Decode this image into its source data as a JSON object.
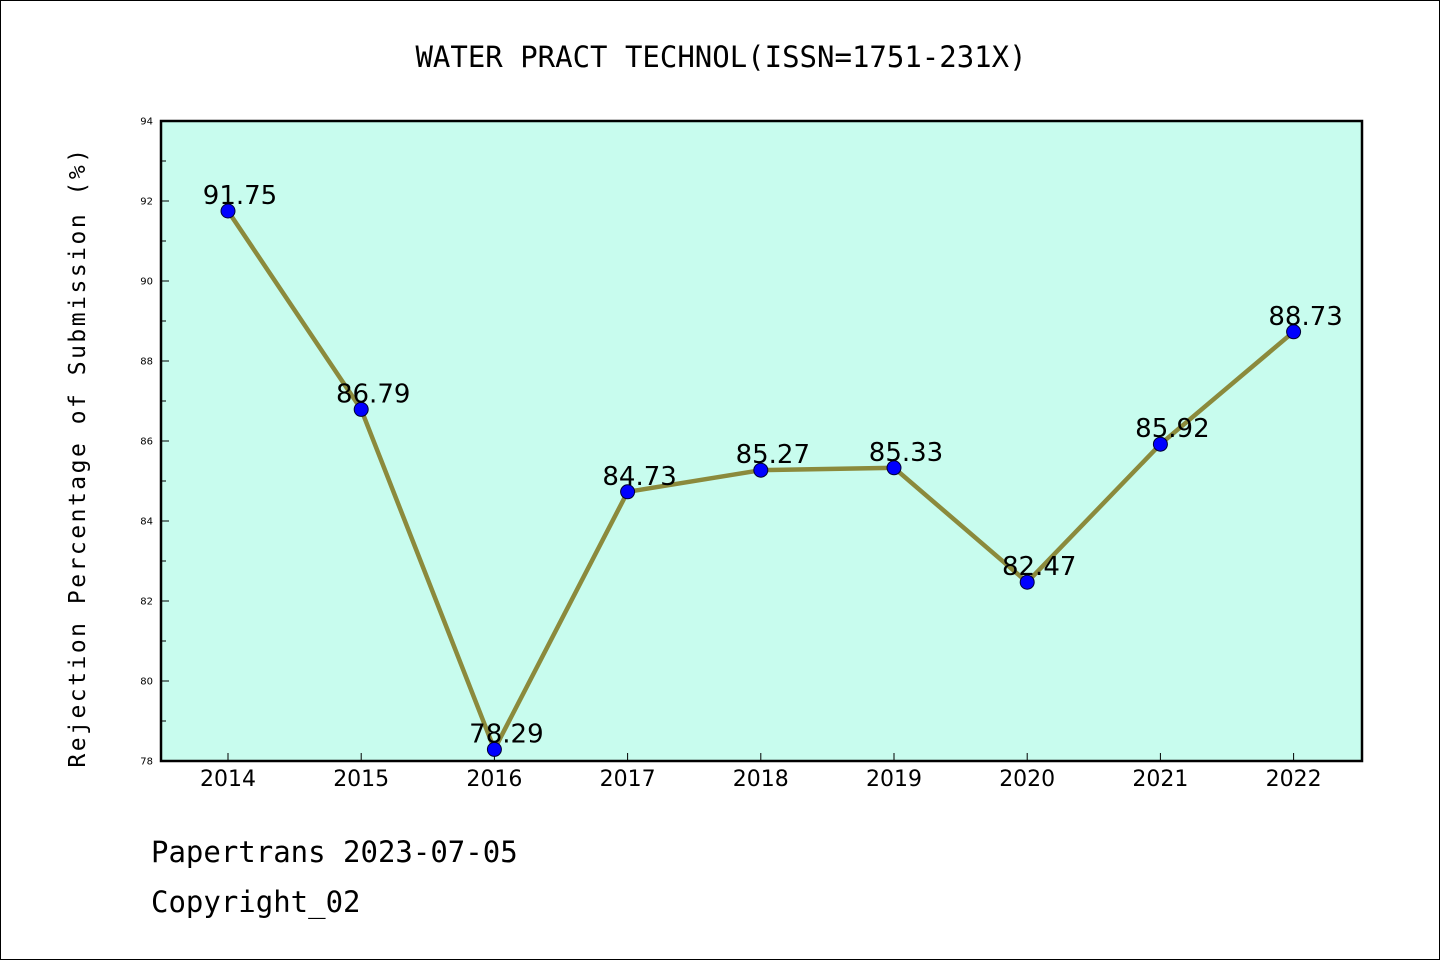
{
  "title": "WATER PRACT TECHNOL(ISSN=1751-231X)",
  "footer": {
    "line1": "Papertrans 2023-07-05",
    "line2": "Copyright_02"
  },
  "chart_data": {
    "type": "line",
    "title": "WATER PRACT TECHNOL(ISSN=1751-231X)",
    "xlabel": "",
    "ylabel": "Rejection Percentage of Submission (%)",
    "categories": [
      "2014",
      "2015",
      "2016",
      "2017",
      "2018",
      "2019",
      "2020",
      "2021",
      "2022"
    ],
    "values": [
      91.75,
      86.79,
      78.29,
      84.73,
      85.27,
      85.33,
      82.47,
      85.92,
      88.73
    ],
    "data_labels": [
      "91.75",
      "86.79",
      "78.29",
      "84.73",
      "85.27",
      "85.33",
      "82.47",
      "85.92",
      "88.73"
    ],
    "ylim": [
      78,
      94
    ],
    "yticks": [
      "78",
      "80",
      "82",
      "84",
      "86",
      "88",
      "90",
      "92",
      "94"
    ],
    "grid": false,
    "legend": "none",
    "colors": {
      "plot_background": "#c8fcee",
      "line": "#8b8a3c",
      "marker": "#0000ff"
    }
  }
}
